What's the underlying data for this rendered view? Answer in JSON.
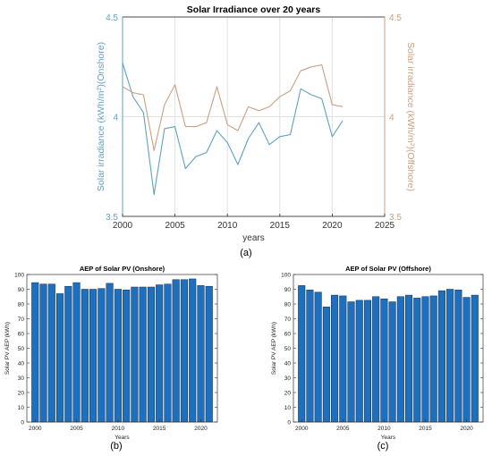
{
  "colors": {
    "onshore": "#5fa2bf",
    "offshore": "#c9a083",
    "bar": "#1f6fbf",
    "grid": "#e1e1e1",
    "axis": "#444444"
  },
  "panel_labels": [
    "(a)",
    "(b)",
    "(c)"
  ],
  "chart_data": [
    {
      "type": "line",
      "title": "Solar Irradiance over 20 years",
      "xlabel": "years",
      "ylabel_left": "Solar irradiance (kWh/m²)(Onshore)",
      "ylabel_right": "Solar irradiance (kWh/m²)(Offshore)",
      "xlim": [
        2000,
        2025
      ],
      "ylim_left": [
        3.5,
        4.5
      ],
      "ylim_right": [
        3.5,
        4.5
      ],
      "xticks": [
        "2000",
        "2005",
        "2010",
        "2015",
        "2020",
        "2025"
      ],
      "yticks_left": [
        "3.5",
        "4",
        "4.5"
      ],
      "yticks_right": [
        "3.5",
        "4",
        "4.5"
      ],
      "grid": true,
      "x": [
        2000,
        2001,
        2002,
        2003,
        2004,
        2005,
        2006,
        2007,
        2008,
        2009,
        2010,
        2011,
        2012,
        2013,
        2014,
        2015,
        2016,
        2017,
        2018,
        2019,
        2020,
        2021
      ],
      "series": [
        {
          "axis": "left",
          "color": "#5fa2bf",
          "values": [
            4.27,
            4.1,
            4.02,
            3.61,
            3.94,
            3.95,
            3.74,
            3.8,
            3.82,
            3.93,
            3.87,
            3.76,
            3.89,
            3.97,
            3.86,
            3.9,
            3.91,
            4.14,
            4.11,
            4.09,
            3.9,
            3.98
          ]
        },
        {
          "axis": "right",
          "color": "#c9a083",
          "values": [
            4.15,
            4.12,
            4.11,
            3.83,
            4.06,
            4.16,
            3.95,
            3.95,
            3.97,
            4.15,
            3.96,
            3.93,
            4.05,
            4.03,
            4.05,
            4.1,
            4.13,
            4.23,
            4.25,
            4.26,
            4.06,
            4.05
          ]
        }
      ]
    },
    {
      "type": "bar",
      "title": "AEP of Solar PV (Onshore)",
      "xlabel": "Years",
      "ylabel": "Solar PV AEP (kWh)",
      "ylim": [
        0,
        100
      ],
      "yticks": [
        "0",
        "10",
        "20",
        "30",
        "40",
        "50",
        "60",
        "70",
        "80",
        "90",
        "100"
      ],
      "xticks": [
        "2000",
        "2005",
        "2010",
        "2015",
        "2020"
      ],
      "x": [
        2000,
        2001,
        2002,
        2003,
        2004,
        2005,
        2006,
        2007,
        2008,
        2009,
        2010,
        2011,
        2012,
        2013,
        2014,
        2015,
        2016,
        2017,
        2018,
        2019,
        2020,
        2021
      ],
      "values": [
        94.5,
        93.5,
        93.5,
        87,
        92,
        94.5,
        90,
        90,
        90.5,
        94,
        90,
        89.5,
        91.5,
        91.5,
        91.5,
        93,
        93.5,
        96.5,
        96.5,
        97,
        92.5,
        92
      ]
    },
    {
      "type": "bar",
      "title": "AEP of Solar PV (Offshore)",
      "xlabel": "Years",
      "ylabel": "Solar PV AEP (kWh)",
      "ylim": [
        0,
        100
      ],
      "yticks": [
        "0",
        "10",
        "20",
        "30",
        "40",
        "50",
        "60",
        "70",
        "80",
        "90",
        "100"
      ],
      "xticks": [
        "2000",
        "2005",
        "2010",
        "2015",
        "2020"
      ],
      "x": [
        2000,
        2001,
        2002,
        2003,
        2004,
        2005,
        2006,
        2007,
        2008,
        2009,
        2010,
        2011,
        2012,
        2013,
        2014,
        2015,
        2016,
        2017,
        2018,
        2019,
        2020,
        2021
      ],
      "values": [
        92.5,
        89.5,
        88,
        78,
        86,
        85.5,
        81.5,
        82.5,
        82.5,
        85,
        83.5,
        81.5,
        85,
        86,
        84,
        85,
        85.5,
        89,
        90,
        89.5,
        84.5,
        86
      ]
    }
  ]
}
